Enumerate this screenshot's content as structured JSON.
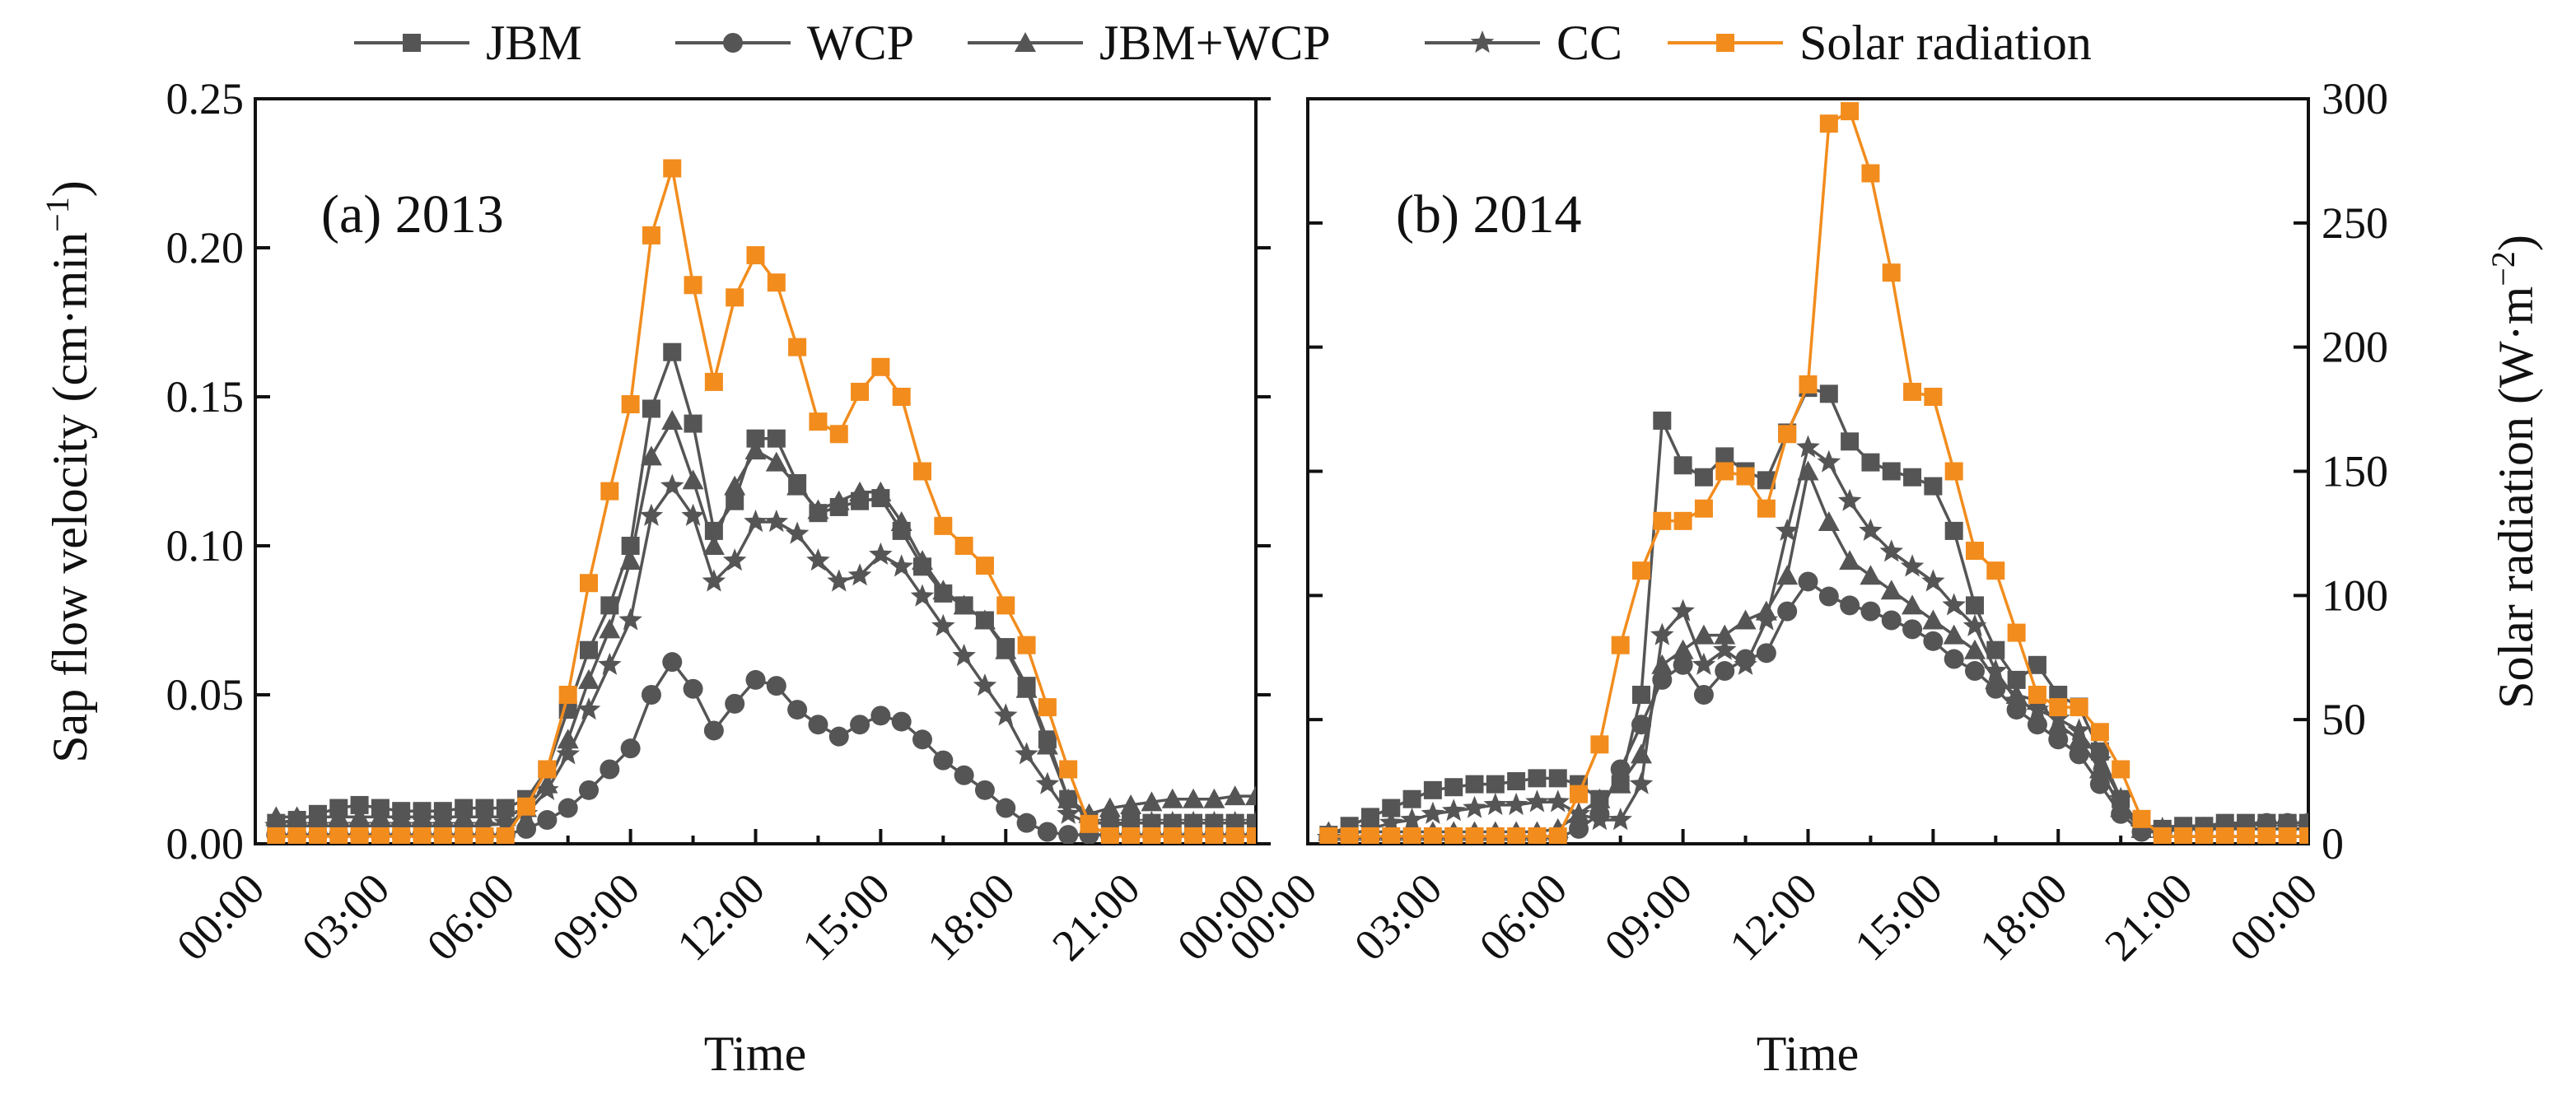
{
  "chart_data": {
    "type": "line",
    "legend": {
      "placement": "top-center",
      "entries": [
        "JBM",
        "WCP",
        "JBM+WCP",
        "CC",
        "Solar radiation"
      ]
    },
    "x_tick_labels": [
      "00:00",
      "03:00",
      "06:00",
      "09:00",
      "12:00",
      "15:00",
      "18:00",
      "21:00",
      "00:00"
    ],
    "xlabel": "Time",
    "ylabel_left": "Sap flow velocity (cm·min",
    "ylabel_left_sup": "−1",
    "ylabel_left_close": ")",
    "ylabel_right": "Solar radiation (W·m",
    "ylabel_right_sup": "−2",
    "ylabel_right_close": ")",
    "ylim_left": [
      0,
      0.25
    ],
    "left_ticks": [
      "0.00",
      "0.05",
      "0.10",
      "0.15",
      "0.20",
      "0.25"
    ],
    "ylim_right": [
      0,
      300
    ],
    "right_ticks": [
      "0",
      "50",
      "100",
      "150",
      "200",
      "250",
      "300"
    ],
    "xlim_hours": [
      0,
      24
    ],
    "colors": {
      "gray": "#555555",
      "orange": "#f28c1d",
      "axis": "#111111"
    },
    "panels": [
      {
        "title": "(a) 2013",
        "x_hours": [
          0.5,
          1,
          1.5,
          2,
          2.5,
          3,
          3.5,
          4,
          4.5,
          5,
          5.5,
          6,
          6.5,
          7,
          7.5,
          8,
          8.5,
          9,
          9.5,
          10,
          10.5,
          11,
          11.5,
          12,
          12.5,
          13,
          13.5,
          14,
          14.5,
          15,
          15.5,
          16,
          16.5,
          17,
          17.5,
          18,
          18.5,
          19,
          19.5,
          20,
          20.5,
          21,
          21.5,
          22,
          22.5,
          23,
          23.5,
          24
        ],
        "series": [
          {
            "name": "JBM",
            "axis": "left",
            "color": "#555555",
            "marker": "square",
            "values": [
              0.007,
              0.008,
              0.01,
              0.012,
              0.013,
              0.012,
              0.011,
              0.011,
              0.011,
              0.012,
              0.012,
              0.012,
              0.015,
              0.025,
              0.045,
              0.065,
              0.08,
              0.1,
              0.146,
              0.165,
              0.141,
              0.105,
              0.115,
              0.136,
              0.136,
              0.121,
              0.111,
              0.113,
              0.115,
              0.116,
              0.105,
              0.093,
              0.084,
              0.08,
              0.075,
              0.066,
              0.053,
              0.035,
              0.015,
              0.008,
              0.006,
              0.007,
              0.007,
              0.007,
              0.007,
              0.007,
              0.007,
              0.007
            ]
          },
          {
            "name": "WCP",
            "axis": "left",
            "color": "#555555",
            "marker": "circle",
            "values": [
              0.003,
              0.003,
              0.003,
              0.003,
              0.003,
              0.003,
              0.003,
              0.003,
              0.003,
              0.003,
              0.003,
              0.003,
              0.005,
              0.008,
              0.012,
              0.018,
              0.025,
              0.032,
              0.05,
              0.061,
              0.052,
              0.038,
              0.047,
              0.055,
              0.053,
              0.045,
              0.04,
              0.036,
              0.04,
              0.043,
              0.041,
              0.035,
              0.028,
              0.023,
              0.018,
              0.012,
              0.007,
              0.004,
              0.003,
              0.003,
              0.003,
              0.003,
              0.003,
              0.003,
              0.003,
              0.003,
              0.003,
              0.003
            ]
          },
          {
            "name": "JBM+WCP",
            "axis": "left",
            "color": "#555555",
            "marker": "triangle",
            "values": [
              0.009,
              0.009,
              0.009,
              0.009,
              0.009,
              0.009,
              0.009,
              0.009,
              0.009,
              0.009,
              0.009,
              0.009,
              0.012,
              0.02,
              0.035,
              0.055,
              0.072,
              0.095,
              0.13,
              0.142,
              0.122,
              0.1,
              0.12,
              0.132,
              0.128,
              0.12,
              0.112,
              0.115,
              0.118,
              0.118,
              0.108,
              0.095,
              0.085,
              0.08,
              0.075,
              0.065,
              0.052,
              0.033,
              0.015,
              0.01,
              0.012,
              0.013,
              0.014,
              0.015,
              0.015,
              0.015,
              0.016,
              0.016
            ]
          },
          {
            "name": "CC",
            "axis": "left",
            "color": "#555555",
            "marker": "star",
            "values": [
              0.006,
              0.006,
              0.006,
              0.006,
              0.006,
              0.006,
              0.006,
              0.006,
              0.006,
              0.006,
              0.006,
              0.007,
              0.01,
              0.018,
              0.03,
              0.045,
              0.06,
              0.075,
              0.11,
              0.12,
              0.11,
              0.088,
              0.095,
              0.108,
              0.108,
              0.104,
              0.095,
              0.088,
              0.09,
              0.097,
              0.093,
              0.083,
              0.073,
              0.063,
              0.053,
              0.043,
              0.03,
              0.02,
              0.01,
              0.007,
              0.007,
              0.007,
              0.007,
              0.007,
              0.007,
              0.007,
              0.007,
              0.007
            ]
          },
          {
            "name": "Solar radiation",
            "axis": "right",
            "color": "#f28c1d",
            "marker": "square",
            "values": [
              3,
              3,
              3,
              3,
              3,
              3,
              3,
              3,
              3,
              3,
              3,
              3,
              15,
              30,
              60,
              105,
              142,
              177,
              245,
              272,
              225,
              186,
              220,
              237,
              226,
              200,
              170,
              165,
              182,
              192,
              180,
              150,
              128,
              120,
              112,
              96,
              80,
              55,
              30,
              8,
              3,
              3,
              3,
              3,
              3,
              3,
              3,
              3
            ]
          }
        ]
      },
      {
        "title": "(b) 2014",
        "x_hours": [
          0.5,
          1,
          1.5,
          2,
          2.5,
          3,
          3.5,
          4,
          4.5,
          5,
          5.5,
          6,
          6.5,
          7,
          7.5,
          8,
          8.5,
          9,
          9.5,
          10,
          10.5,
          11,
          11.5,
          12,
          12.5,
          13,
          13.5,
          14,
          14.5,
          15,
          15.5,
          16,
          16.5,
          17,
          17.5,
          18,
          18.5,
          19,
          19.5,
          20,
          20.5,
          21,
          21.5,
          22,
          22.5,
          23,
          23.5,
          24
        ],
        "series": [
          {
            "name": "JBM",
            "axis": "left",
            "color": "#555555",
            "marker": "square",
            "values": [
              0.003,
              0.006,
              0.009,
              0.012,
              0.015,
              0.018,
              0.019,
              0.02,
              0.02,
              0.021,
              0.022,
              0.022,
              0.02,
              0.015,
              0.02,
              0.05,
              0.142,
              0.127,
              0.123,
              0.13,
              0.125,
              0.122,
              0.138,
              0.153,
              0.151,
              0.135,
              0.128,
              0.125,
              0.123,
              0.12,
              0.105,
              0.08,
              0.065,
              0.055,
              0.06,
              0.05,
              0.046,
              0.031,
              0.015,
              0.005,
              0.005,
              0.006,
              0.006,
              0.007,
              0.007,
              0.007,
              0.007,
              0.007
            ]
          },
          {
            "name": "WCP",
            "axis": "left",
            "color": "#555555",
            "marker": "circle",
            "values": [
              0.002,
              0.002,
              0.002,
              0.002,
              0.002,
              0.002,
              0.002,
              0.002,
              0.002,
              0.002,
              0.002,
              0.002,
              0.005,
              0.01,
              0.025,
              0.04,
              0.055,
              0.06,
              0.05,
              0.058,
              0.062,
              0.064,
              0.078,
              0.088,
              0.083,
              0.08,
              0.078,
              0.075,
              0.072,
              0.068,
              0.062,
              0.058,
              0.052,
              0.045,
              0.04,
              0.035,
              0.03,
              0.02,
              0.01,
              0.004,
              0.004,
              0.005,
              0.005,
              0.006,
              0.006,
              0.007,
              0.007,
              0.007
            ]
          },
          {
            "name": "JBM+WCP",
            "axis": "left",
            "color": "#555555",
            "marker": "triangle",
            "values": [
              0.004,
              0.004,
              0.004,
              0.004,
              0.004,
              0.004,
              0.004,
              0.004,
              0.004,
              0.004,
              0.004,
              0.005,
              0.01,
              0.015,
              0.02,
              0.03,
              0.06,
              0.065,
              0.07,
              0.07,
              0.075,
              0.078,
              0.09,
              0.125,
              0.108,
              0.095,
              0.09,
              0.085,
              0.08,
              0.075,
              0.07,
              0.065,
              0.055,
              0.05,
              0.048,
              0.04,
              0.035,
              0.025,
              0.012,
              0.005,
              0.005,
              0.005,
              0.005,
              0.005,
              0.005,
              0.005,
              0.005,
              0.005
            ]
          },
          {
            "name": "CC",
            "axis": "left",
            "color": "#555555",
            "marker": "star",
            "values": [
              0.002,
              0.003,
              0.005,
              0.007,
              0.008,
              0.01,
              0.011,
              0.012,
              0.013,
              0.013,
              0.014,
              0.014,
              0.01,
              0.008,
              0.008,
              0.02,
              0.07,
              0.078,
              0.06,
              0.065,
              0.06,
              0.075,
              0.105,
              0.133,
              0.128,
              0.115,
              0.105,
              0.098,
              0.093,
              0.088,
              0.08,
              0.073,
              0.058,
              0.048,
              0.045,
              0.042,
              0.038,
              0.028,
              0.015,
              0.005,
              0.005,
              0.005,
              0.005,
              0.005,
              0.005,
              0.005,
              0.005,
              0.005
            ]
          },
          {
            "name": "Solar radiation",
            "axis": "right",
            "color": "#f28c1d",
            "marker": "square",
            "values": [
              3,
              3,
              3,
              3,
              3,
              3,
              3,
              3,
              3,
              3,
              3,
              3,
              20,
              40,
              80,
              110,
              130,
              130,
              135,
              150,
              148,
              135,
              165,
              185,
              290,
              295,
              270,
              230,
              182,
              180,
              150,
              118,
              110,
              85,
              60,
              55,
              55,
              45,
              30,
              10,
              3,
              3,
              3,
              3,
              3,
              3,
              3,
              3
            ]
          }
        ]
      }
    ]
  }
}
